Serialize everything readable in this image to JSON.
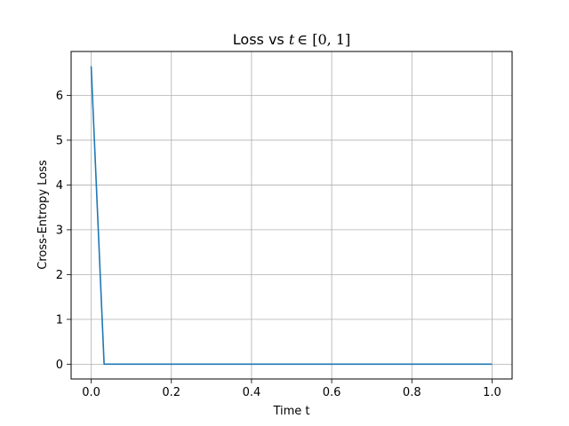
{
  "chart_data": {
    "type": "line",
    "title": "Loss vs t ∈ [0, 1]",
    "title_parts": {
      "prefix": "Loss vs ",
      "var": "t",
      "set": "∈ [0, 1]"
    },
    "xlabel": "Time t",
    "ylabel": "Cross-Entropy Loss",
    "xlim": [
      -0.05,
      1.05
    ],
    "ylim": [
      -0.33,
      6.98
    ],
    "x_ticks": [
      0.0,
      0.2,
      0.4,
      0.6,
      0.8,
      1.0
    ],
    "x_tick_labels": [
      "0.0",
      "0.2",
      "0.4",
      "0.6",
      "0.8",
      "1.0"
    ],
    "y_ticks": [
      0,
      1,
      2,
      3,
      4,
      5,
      6
    ],
    "y_tick_labels": [
      "0",
      "1",
      "2",
      "3",
      "4",
      "5",
      "6"
    ],
    "grid": true,
    "series": [
      {
        "color": "#1f77b4",
        "x": [
          0.0,
          0.0323,
          0.0645,
          0.0968,
          0.129,
          0.1613,
          0.1935,
          0.2258,
          0.2581,
          0.2903,
          0.3226,
          0.3548,
          0.3871,
          0.4194,
          0.4516,
          0.4839,
          0.5161,
          0.5484,
          0.5806,
          0.6129,
          0.6452,
          0.6774,
          0.7097,
          0.7419,
          0.7742,
          0.8065,
          0.8387,
          0.871,
          0.9032,
          0.9355,
          0.9677,
          1.0
        ],
        "y": [
          6.65,
          0.0,
          0.0,
          0.0,
          0.0,
          0.0,
          0.0,
          0.0,
          0.0,
          0.0,
          0.0,
          0.0,
          0.0,
          0.0,
          0.0,
          0.0,
          0.0,
          0.0,
          0.0,
          0.0,
          0.0,
          0.0,
          0.0,
          0.0,
          0.0,
          0.0,
          0.0,
          0.0,
          0.0,
          0.0,
          0.0,
          0.0
        ]
      }
    ]
  }
}
